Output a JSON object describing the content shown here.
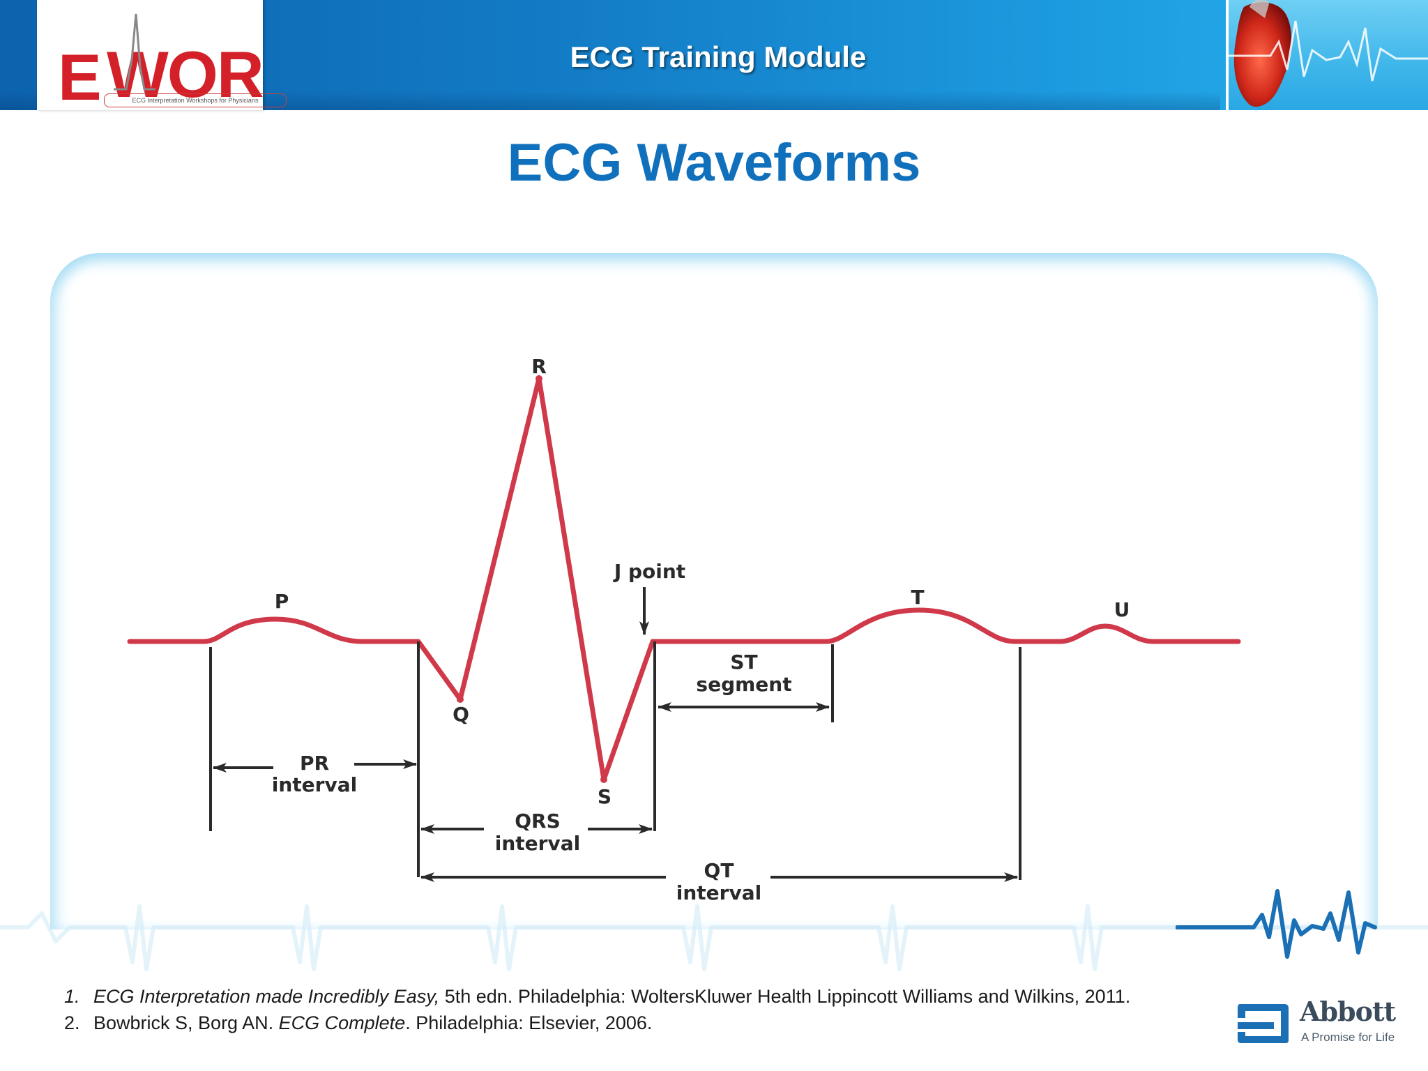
{
  "header": {
    "title": "ECG Training Module",
    "logo": {
      "letter_e": "E",
      "letters_wor": "WOR",
      "tagline": "ECG Interpretation Workshops for Physicians"
    }
  },
  "slide": {
    "title": "ECG Waveforms"
  },
  "diagram": {
    "waves": {
      "p": "P",
      "q": "Q",
      "r": "R",
      "s": "S",
      "t": "T",
      "u": "U"
    },
    "j_point": "J point",
    "st_segment": [
      "ST",
      "segment"
    ],
    "pr_interval": [
      "PR",
      "interval"
    ],
    "qrs_interval": [
      "QRS",
      "interval"
    ],
    "qt_interval": [
      "QT",
      "interval"
    ]
  },
  "references": [
    {
      "num": "1.",
      "title": "ECG Interpretation made Incredibly Easy,",
      "rest": " 5th edn. Philadelphia: WoltersKluwer Health Lippincott Williams and Wilkins, 2011."
    },
    {
      "num": "2.",
      "pre": "Bowbrick S, Borg AN. ",
      "title": "ECG Complete",
      "rest": ". Philadelphia: Elsevier, 2006."
    }
  ],
  "brand": {
    "name": "Abbott",
    "tagline": "A Promise for Life"
  },
  "colors": {
    "header_blue": "#137cc6",
    "title_blue": "#1170bb",
    "ecg_trace": "#d0394a",
    "logo_red": "#d42028",
    "panel_glow": "#a6dcf4",
    "abbott_blue": "#1a6fb5"
  },
  "icons": [
    "ecg-pulse-icon",
    "heart-illustration",
    "abbott-logo-mark"
  ]
}
